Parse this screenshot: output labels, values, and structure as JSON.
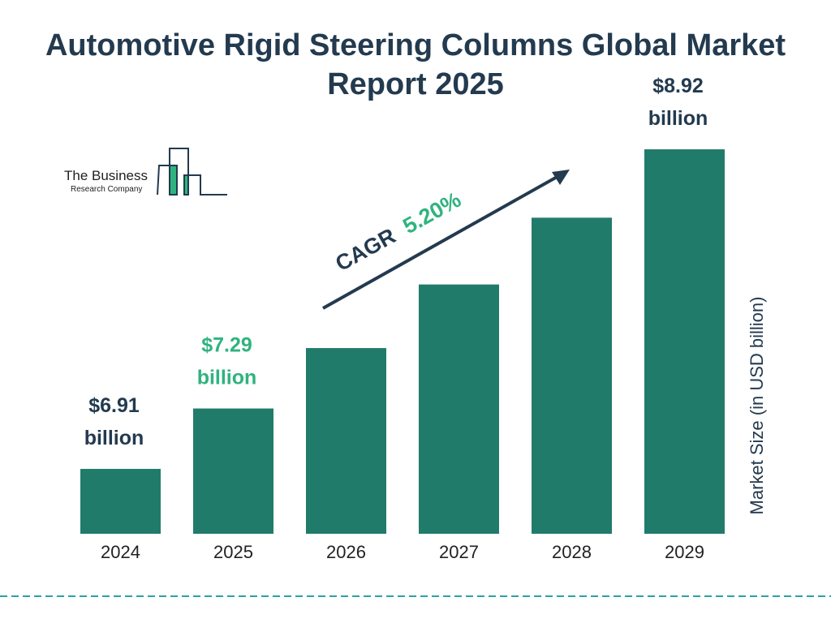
{
  "chart_data": {
    "type": "bar",
    "title": "Automotive Rigid Steering Columns Global Market Report 2025",
    "categories": [
      "2024",
      "2025",
      "2026",
      "2027",
      "2028",
      "2029"
    ],
    "values": [
      6.91,
      7.29,
      7.67,
      8.07,
      8.49,
      8.92
    ],
    "data_labels": [
      [
        "$6.91",
        "billion"
      ],
      [
        "$7.29",
        "billion"
      ],
      null,
      null,
      null,
      [
        "$8.92",
        "billion"
      ]
    ],
    "ylabel": "Market Size (in USD billion)",
    "xlabel": "",
    "grid": false,
    "cagr_label": "CAGR",
    "cagr_value": "5.20%",
    "colors": {
      "bar": "#217b6b",
      "title": "#233a4f",
      "highlight": "#2fb37f",
      "dash": "#2aa3a3"
    }
  },
  "logo": {
    "line1": "The Business",
    "line2": "Research Company"
  }
}
